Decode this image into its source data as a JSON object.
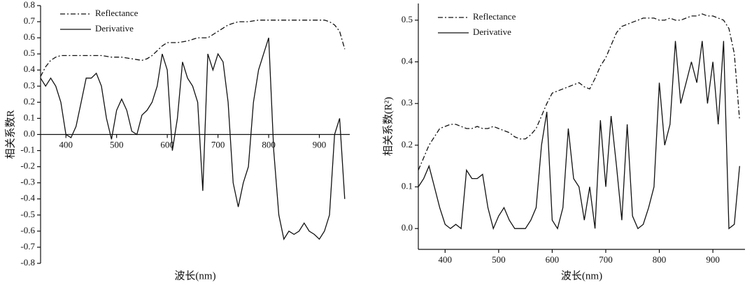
{
  "chart_data": [
    {
      "type": "line",
      "xlabel": "波长(nm)",
      "ylabel": "相关系数R",
      "xaxis_position": "zero",
      "legend": "upper left",
      "xlim": [
        350,
        960
      ],
      "ylim": [
        -0.8,
        0.8
      ],
      "xticks": [
        400,
        500,
        600,
        700,
        800,
        900
      ],
      "yticks": [
        -0.8,
        -0.7,
        -0.6,
        -0.5,
        -0.4,
        -0.3,
        -0.2,
        -0.1,
        {
          "value": 0,
          "label": "0.0"
        },
        0.1,
        0.2,
        0.3,
        0.4,
        0.5,
        0.6,
        0.7,
        0.8
      ],
      "x": [
        350,
        360,
        370,
        380,
        390,
        400,
        410,
        420,
        430,
        440,
        450,
        460,
        470,
        480,
        490,
        500,
        510,
        520,
        530,
        540,
        550,
        560,
        570,
        580,
        590,
        600,
        610,
        620,
        630,
        640,
        650,
        660,
        670,
        680,
        690,
        700,
        710,
        720,
        730,
        740,
        750,
        760,
        770,
        780,
        790,
        800,
        810,
        820,
        830,
        840,
        850,
        860,
        870,
        880,
        890,
        900,
        910,
        920,
        930,
        940,
        950
      ],
      "series": [
        {
          "name": "Reflectance",
          "color": "#111111",
          "linestyle": "dashdot",
          "values": [
            0.36,
            0.42,
            0.46,
            0.48,
            0.49,
            0.49,
            0.49,
            0.49,
            0.49,
            0.49,
            0.49,
            0.49,
            0.49,
            0.485,
            0.48,
            0.48,
            0.48,
            0.475,
            0.47,
            0.465,
            0.46,
            0.47,
            0.49,
            0.52,
            0.55,
            0.57,
            0.57,
            0.57,
            0.575,
            0.58,
            0.59,
            0.6,
            0.6,
            0.6,
            0.62,
            0.64,
            0.66,
            0.68,
            0.69,
            0.7,
            0.7,
            0.7,
            0.705,
            0.71,
            0.71,
            0.71,
            0.71,
            0.71,
            0.71,
            0.71,
            0.71,
            0.71,
            0.71,
            0.71,
            0.71,
            0.71,
            0.71,
            0.7,
            0.68,
            0.64,
            0.53
          ]
        },
        {
          "name": "Derivative",
          "color": "#111111",
          "linestyle": "solid",
          "values": [
            0.35,
            0.3,
            0.35,
            0.3,
            0.2,
            0.0,
            -0.02,
            0.05,
            0.2,
            0.35,
            0.35,
            0.38,
            0.3,
            0.1,
            -0.03,
            0.15,
            0.22,
            0.15,
            0.02,
            0.0,
            0.12,
            0.15,
            0.2,
            0.3,
            0.5,
            0.4,
            -0.1,
            0.1,
            0.45,
            0.35,
            0.3,
            0.2,
            -0.35,
            0.5,
            0.4,
            0.5,
            0.45,
            0.2,
            -0.3,
            -0.45,
            -0.3,
            -0.2,
            0.2,
            0.4,
            0.5,
            0.6,
            -0.1,
            -0.5,
            -0.65,
            -0.6,
            -0.62,
            -0.6,
            -0.55,
            -0.6,
            -0.62,
            -0.65,
            -0.6,
            -0.5,
            0.0,
            0.1,
            -0.4
          ]
        }
      ]
    },
    {
      "type": "line",
      "xlabel": "波长(nm)",
      "ylabel": "相关系数(R²)",
      "xaxis_position": "bottom",
      "legend": "upper left",
      "xlim": [
        350,
        960
      ],
      "ylim": [
        -0.05,
        0.54
      ],
      "xticks": [
        400,
        500,
        600,
        700,
        800,
        900
      ],
      "yticks": [
        {
          "value": 0,
          "label": "0.0"
        },
        0.1,
        0.2,
        0.3,
        0.4,
        0.5
      ],
      "x": [
        350,
        360,
        370,
        380,
        390,
        400,
        410,
        420,
        430,
        440,
        450,
        460,
        470,
        480,
        490,
        500,
        510,
        520,
        530,
        540,
        550,
        560,
        570,
        580,
        590,
        600,
        610,
        620,
        630,
        640,
        650,
        660,
        670,
        680,
        690,
        700,
        710,
        720,
        730,
        740,
        750,
        760,
        770,
        780,
        790,
        800,
        810,
        820,
        830,
        840,
        850,
        860,
        870,
        880,
        890,
        900,
        910,
        920,
        930,
        940,
        950
      ],
      "series": [
        {
          "name": "Reflectance",
          "color": "#111111",
          "linestyle": "dashdot",
          "values": [
            0.14,
            0.17,
            0.2,
            0.22,
            0.24,
            0.245,
            0.25,
            0.25,
            0.245,
            0.24,
            0.24,
            0.245,
            0.24,
            0.24,
            0.245,
            0.24,
            0.235,
            0.23,
            0.22,
            0.215,
            0.215,
            0.225,
            0.24,
            0.27,
            0.3,
            0.325,
            0.33,
            0.335,
            0.34,
            0.345,
            0.35,
            0.34,
            0.335,
            0.36,
            0.39,
            0.41,
            0.44,
            0.47,
            0.485,
            0.49,
            0.495,
            0.5,
            0.505,
            0.505,
            0.505,
            0.5,
            0.5,
            0.505,
            0.5,
            0.5,
            0.505,
            0.51,
            0.51,
            0.515,
            0.51,
            0.51,
            0.505,
            0.5,
            0.48,
            0.42,
            0.26
          ]
        },
        {
          "name": "Derivative",
          "color": "#111111",
          "linestyle": "solid",
          "values": [
            0.1,
            0.12,
            0.15,
            0.1,
            0.05,
            0.01,
            0.0,
            0.01,
            0.0,
            0.14,
            0.12,
            0.12,
            0.13,
            0.05,
            0.0,
            0.03,
            0.05,
            0.02,
            0.0,
            0.0,
            0.0,
            0.02,
            0.05,
            0.2,
            0.28,
            0.02,
            0.0,
            0.05,
            0.24,
            0.12,
            0.1,
            0.02,
            0.1,
            0.0,
            0.26,
            0.1,
            0.27,
            0.15,
            0.02,
            0.25,
            0.03,
            0.0,
            0.01,
            0.05,
            0.1,
            0.35,
            0.2,
            0.25,
            0.45,
            0.3,
            0.35,
            0.4,
            0.35,
            0.45,
            0.3,
            0.4,
            0.25,
            0.45,
            0.0,
            0.01,
            0.15
          ]
        }
      ]
    }
  ]
}
